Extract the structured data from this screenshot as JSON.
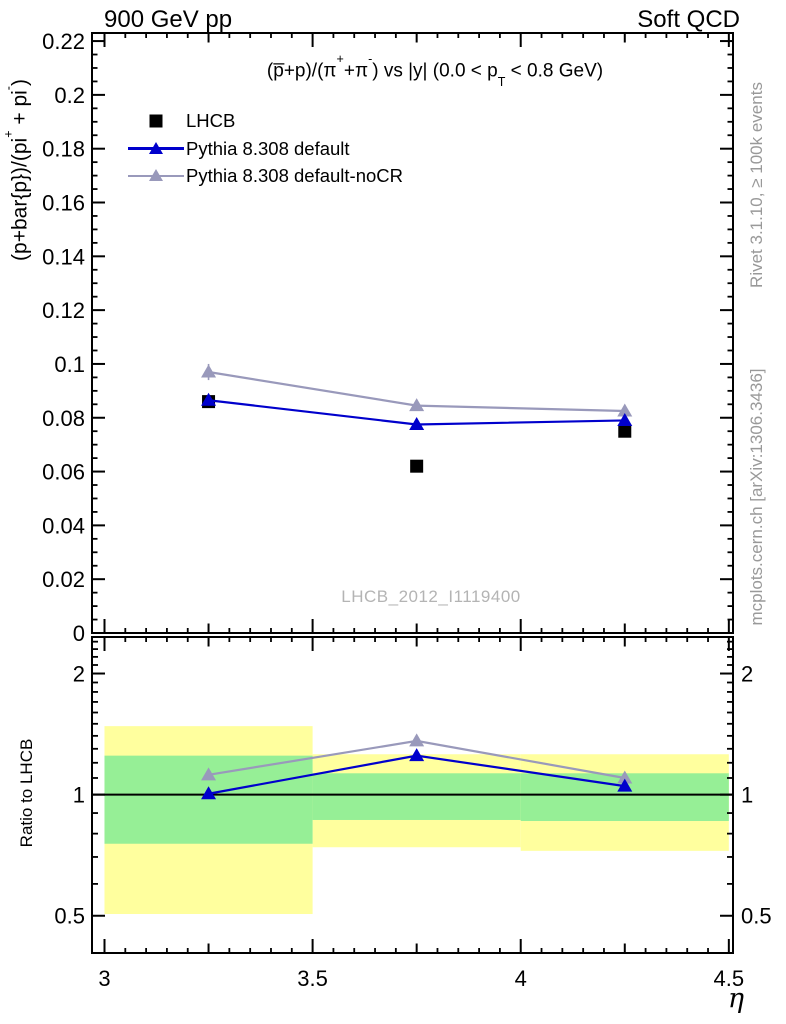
{
  "header": {
    "left": "900 GeV pp",
    "right": "Soft QCD"
  },
  "main_title": {
    "p1": "(p̅+p)/(π",
    "sup1": "+",
    "p2": "+π",
    "sup2": "-",
    "p3": ") vs |y| (0.0 < p",
    "sub1": "T",
    "p4": " < 0.8 GeV)"
  },
  "axis_titles": {
    "main_y": {
      "p1": "(p+bar{p})/(pi",
      "sup1": "+",
      "p2": " + pi",
      "sup2": "-",
      "p3": ")"
    },
    "ratio_y": "Ratio to LHCB",
    "x": "η"
  },
  "legend": [
    {
      "label": "LHCB",
      "marker": "square",
      "color": "#000000",
      "line": false
    },
    {
      "label": "Pythia 8.308 default",
      "marker": "triangle",
      "color": "#0000cc",
      "line": true
    },
    {
      "label": "Pythia 8.308 default-noCR",
      "marker": "triangle",
      "color": "#9999bb",
      "line": true
    }
  ],
  "watermark": "LHCB_2012_I1119400",
  "side_texts": {
    "top": "Rivet 3.1.10, ≥ 100k events",
    "bottom": "mcplots.cern.ch [arXiv:1306.3436]"
  },
  "colors": {
    "lhcb": "#000000",
    "pythia_default": "#0000cc",
    "pythia_nocr": "#9999bb",
    "band_yellow": "#ffff9e",
    "band_green": "#96ef96",
    "side_text_gray": "#999999",
    "watermark_gray": "#b4b4b4"
  },
  "chart_data": {
    "type": "line",
    "title": "(p̅+p)/(π⁺+π⁻) vs |y| (0.0 < p_T < 0.8 GeV)",
    "xlabel": "η",
    "ylabel": "(p+bar{p})/(pi⁺ + pi⁻)",
    "ratio_ylabel": "Ratio to LHCB",
    "x": [
      3.25,
      3.75,
      4.25
    ],
    "xlim": [
      2.97,
      4.51
    ],
    "xticks": {
      "major": [
        3,
        3.5,
        4,
        4.5
      ],
      "labels": [
        "3",
        "3.5",
        "4",
        "4.5"
      ],
      "medium": [
        3.25,
        3.75,
        4.25
      ],
      "minor_step": 0.05
    },
    "main": {
      "ylim": [
        0,
        0.223
      ],
      "yticks": [
        0,
        0.02,
        0.04,
        0.06,
        0.08,
        0.1,
        0.12,
        0.14,
        0.16,
        0.18,
        0.2,
        0.22
      ],
      "ytick_labels": [
        "0",
        "0.02",
        "0.04",
        "0.06",
        "0.08",
        "0.1",
        "0.12",
        "0.14",
        "0.16",
        "0.18",
        "0.2",
        "0.22"
      ],
      "minor_step": 0.005,
      "grid": false,
      "series": [
        {
          "name": "LHCB",
          "color": "#000000",
          "marker": "square",
          "line": false,
          "values": [
            0.086,
            0.062,
            0.075
          ],
          "yerr": [
            0.002,
            0.002,
            0.002
          ]
        },
        {
          "name": "Pythia 8.308 default",
          "color": "#0000cc",
          "marker": "triangle",
          "line": true,
          "values": [
            0.0865,
            0.0775,
            0.079
          ],
          "yerr": [
            0.002,
            0.001,
            0.001
          ]
        },
        {
          "name": "Pythia 8.308 default-noCR",
          "color": "#9999bb",
          "marker": "triangle",
          "line": true,
          "values": [
            0.097,
            0.0845,
            0.0825
          ],
          "yerr": [
            0.003,
            0.001,
            0.001
          ]
        }
      ]
    },
    "ratio": {
      "scale": "log",
      "ylim": [
        0.404,
        2.465
      ],
      "yticks": [
        0.5,
        1,
        2
      ],
      "ytick_labels": [
        "0.5",
        "1",
        "2"
      ],
      "yticks_minor": [
        0.6,
        0.7,
        0.8,
        0.9,
        1.1,
        1.2,
        1.3,
        1.4,
        1.5,
        1.6,
        1.7,
        1.8,
        1.9,
        2.1,
        2.2,
        2.3,
        2.4
      ],
      "refline": 1,
      "band_colors": {
        "yellow": "#ffff9e",
        "green": "#96ef96"
      },
      "bands": [
        {
          "x0": 3.0,
          "x1": 3.5,
          "yellow": [
            0.505,
            1.48
          ],
          "green": [
            0.755,
            1.25
          ]
        },
        {
          "x0": 3.5,
          "x1": 4.0,
          "yellow": [
            0.74,
            1.26
          ],
          "green": [
            0.865,
            1.13
          ]
        },
        {
          "x0": 4.0,
          "x1": 4.5,
          "yellow": [
            0.725,
            1.26
          ],
          "green": [
            0.86,
            1.13
          ]
        }
      ],
      "series": [
        {
          "name": "Pythia 8.308 default",
          "color": "#0000cc",
          "marker": "triangle",
          "line": true,
          "values": [
            1.005,
            1.25,
            1.05
          ]
        },
        {
          "name": "Pythia 8.308 default-noCR",
          "color": "#9999bb",
          "marker": "triangle",
          "line": true,
          "values": [
            1.12,
            1.36,
            1.1
          ]
        }
      ]
    }
  }
}
